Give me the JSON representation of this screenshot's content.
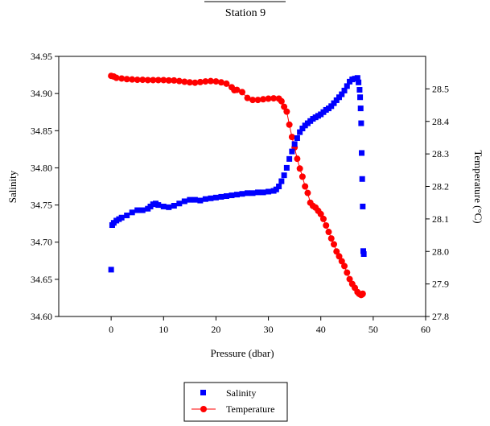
{
  "chart_data": {
    "type": "scatter",
    "title": "Station 9",
    "xlabel": "Pressure (dbar)",
    "ylabel": "Salinity",
    "y2label": "Temperature (°C)",
    "xlim": [
      -10,
      60
    ],
    "xticks": [
      0,
      10,
      20,
      30,
      40,
      50,
      60
    ],
    "ylim": [
      34.6,
      34.95
    ],
    "yticks": [
      "34.60",
      "34.65",
      "34.70",
      "34.75",
      "34.80",
      "34.85",
      "34.90",
      "34.95"
    ],
    "y2lim": [
      27.8,
      28.6
    ],
    "y2ticks": [
      "27.8",
      "27.9",
      "28.0",
      "28.1",
      "28.2",
      "28.3",
      "28.4",
      "28.5"
    ],
    "grid": false,
    "legend_position": "bottom-center",
    "series": [
      {
        "name": "Salinity",
        "axis": "left",
        "marker": "square",
        "color": "#0000ff",
        "x": [
          0,
          0.2,
          0.5,
          1,
          1.5,
          2,
          3,
          4,
          5,
          6,
          7,
          7.5,
          8,
          8.5,
          9,
          10,
          11,
          12,
          13,
          14,
          15,
          16,
          17,
          18,
          19,
          20,
          21,
          22,
          23,
          24,
          25,
          26,
          27,
          28,
          29,
          30,
          31,
          31.5,
          32,
          32.5,
          33,
          33.5,
          34,
          34.5,
          35,
          35.5,
          36,
          36.5,
          37,
          37.5,
          38,
          38.5,
          39,
          39.5,
          40,
          40.5,
          41,
          41.5,
          42,
          42.5,
          43,
          43.5,
          44,
          44.5,
          45,
          45.5,
          46,
          46.5,
          47,
          47.2,
          47.4,
          47.5,
          47.6,
          47.7,
          47.8,
          47.9,
          48,
          48.1,
          48.2
        ],
        "y": [
          34.663,
          34.723,
          34.726,
          34.729,
          34.731,
          34.733,
          34.736,
          34.74,
          34.743,
          34.743,
          34.745,
          34.748,
          34.751,
          34.752,
          34.75,
          34.748,
          34.747,
          34.749,
          34.752,
          34.755,
          34.757,
          34.757,
          34.756,
          34.758,
          34.759,
          34.76,
          34.761,
          34.762,
          34.763,
          34.764,
          34.765,
          34.766,
          34.766,
          34.767,
          34.767,
          34.768,
          34.769,
          34.771,
          34.775,
          34.782,
          34.79,
          34.8,
          34.812,
          34.822,
          34.832,
          34.84,
          34.848,
          34.853,
          34.857,
          34.86,
          34.863,
          34.866,
          34.868,
          34.87,
          34.872,
          34.875,
          34.878,
          34.88,
          34.883,
          34.887,
          34.891,
          34.895,
          34.899,
          34.904,
          34.91,
          34.916,
          34.919,
          34.92,
          34.921,
          34.915,
          34.905,
          34.895,
          34.88,
          34.86,
          34.82,
          34.785,
          34.748,
          34.688,
          34.684
        ]
      },
      {
        "name": "Temperature",
        "axis": "right",
        "marker": "circle",
        "color": "#ff0000",
        "x": [
          0,
          0.5,
          1,
          2,
          3,
          4,
          5,
          6,
          7,
          8,
          9,
          10,
          11,
          12,
          13,
          14,
          15,
          16,
          17,
          18,
          19,
          20,
          21,
          22,
          23,
          23.5,
          24,
          25,
          26,
          27,
          28,
          29,
          30,
          31,
          32,
          32.5,
          33,
          33.5,
          34,
          34.5,
          35,
          35.5,
          36,
          36.5,
          37,
          37.5,
          38,
          38.5,
          39,
          39.5,
          40,
          40.5,
          41,
          41.5,
          42,
          42.5,
          43,
          43.5,
          44,
          44.5,
          45,
          45.5,
          46,
          46.5,
          47,
          47.3,
          47.5,
          47.7,
          47.9,
          48
        ],
        "y": [
          28.54,
          28.538,
          28.534,
          28.532,
          28.53,
          28.529,
          28.528,
          28.528,
          28.527,
          28.527,
          28.527,
          28.527,
          28.526,
          28.526,
          28.524,
          28.522,
          28.52,
          28.519,
          28.521,
          28.523,
          28.524,
          28.523,
          28.52,
          28.516,
          28.505,
          28.496,
          28.497,
          28.49,
          28.472,
          28.466,
          28.466,
          28.468,
          28.47,
          28.471,
          28.47,
          28.462,
          28.445,
          28.43,
          28.39,
          28.352,
          28.32,
          28.285,
          28.255,
          28.23,
          28.2,
          28.18,
          28.15,
          28.14,
          28.135,
          28.125,
          28.115,
          28.1,
          28.08,
          28.06,
          28.04,
          28.022,
          28.0,
          27.985,
          27.97,
          27.955,
          27.935,
          27.915,
          27.9,
          27.888,
          27.875,
          27.87,
          27.868,
          27.866,
          27.868,
          27.87
        ]
      }
    ]
  }
}
